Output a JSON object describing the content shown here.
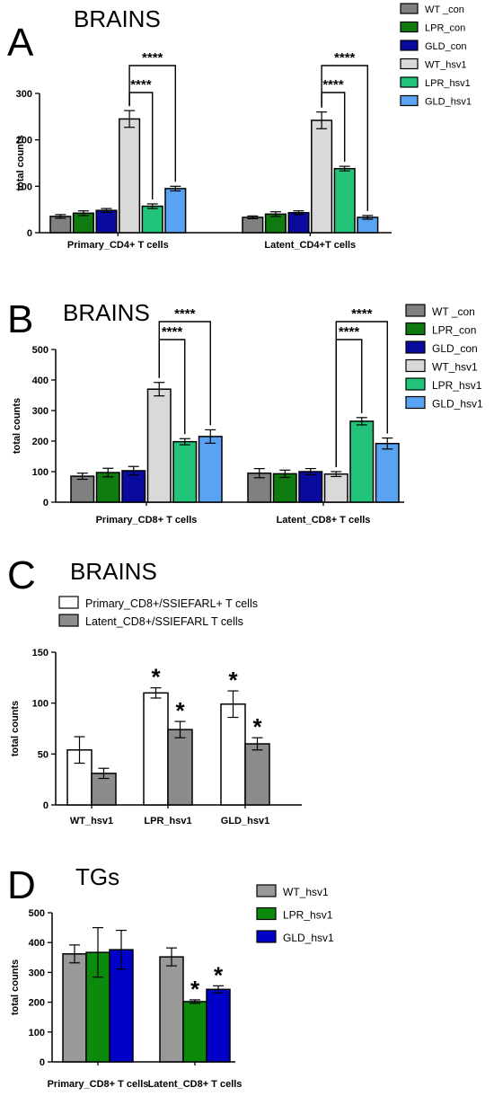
{
  "colors": {
    "WT_con": "#808080",
    "LPR_con": "#0f7a0f",
    "GLD_con": "#0a0a9e",
    "WT_hsv1": "#d9d9d9",
    "LPR_hsv1": "#22c47a",
    "GLD_hsv1": "#5aa2f2",
    "primary_white": "#ffffff",
    "latent_grey": "#8c8c8c",
    "tg_WT": "#999999",
    "tg_LPR": "#0c8a0c",
    "tg_GLD": "#0000c8"
  },
  "chart_data": [
    {
      "panel": "A",
      "title": "BRAINS",
      "type": "bar",
      "ylabel": "total counts",
      "ylim": [
        0,
        300
      ],
      "yticks": [
        0,
        100,
        200,
        300
      ],
      "categories": [
        "Primary_CD4+ T cells",
        "Latent_CD4+T cells"
      ],
      "legend_position": "top-right",
      "series": [
        {
          "name": "WT _con",
          "color_key": "WT_con",
          "values": [
            35,
            33
          ],
          "errors": [
            4,
            3
          ]
        },
        {
          "name": "LPR_con",
          "color_key": "LPR_con",
          "values": [
            42,
            40
          ],
          "errors": [
            5,
            5
          ]
        },
        {
          "name": "GLD_con",
          "color_key": "GLD_con",
          "values": [
            48,
            43
          ],
          "errors": [
            4,
            4
          ]
        },
        {
          "name": "WT_hsv1",
          "color_key": "WT_hsv1",
          "values": [
            245,
            242
          ],
          "errors": [
            18,
            18
          ]
        },
        {
          "name": "LPR_hsv1",
          "color_key": "LPR_hsv1",
          "values": [
            57,
            138
          ],
          "errors": [
            5,
            5
          ]
        },
        {
          "name": "GLD_hsv1",
          "color_key": "GLD_hsv1",
          "values": [
            95,
            33
          ],
          "errors": [
            5,
            4
          ]
        }
      ],
      "significance": [
        {
          "group": 0,
          "from": 3,
          "to": 4,
          "label": "****",
          "level": 1
        },
        {
          "group": 0,
          "from": 3,
          "to": 5,
          "label": "****",
          "level": 2
        },
        {
          "group": 1,
          "from": 3,
          "to": 4,
          "label": "****",
          "level": 1
        },
        {
          "group": 1,
          "from": 3,
          "to": 5,
          "label": "****",
          "level": 2
        }
      ]
    },
    {
      "panel": "B",
      "title": "BRAINS",
      "type": "bar",
      "ylabel": "total counts",
      "ylim": [
        0,
        500
      ],
      "yticks": [
        0,
        100,
        200,
        300,
        400,
        500
      ],
      "categories": [
        "Primary_CD8+ T cells",
        "Latent_CD8+ T cells"
      ],
      "legend_position": "right",
      "series": [
        {
          "name": "WT _con",
          "color_key": "WT_con",
          "values": [
            85,
            95
          ],
          "errors": [
            10,
            15
          ]
        },
        {
          "name": "LPR_con",
          "color_key": "LPR_con",
          "values": [
            97,
            93
          ],
          "errors": [
            14,
            12
          ]
        },
        {
          "name": "GLD_con",
          "color_key": "GLD_con",
          "values": [
            103,
            100
          ],
          "errors": [
            14,
            10
          ]
        },
        {
          "name": "WT_hsv1",
          "color_key": "WT_hsv1",
          "values": [
            370,
            92
          ],
          "errors": [
            22,
            8
          ]
        },
        {
          "name": "LPR_hsv1",
          "color_key": "LPR_hsv1",
          "values": [
            198,
            265
          ],
          "errors": [
            10,
            12
          ]
        },
        {
          "name": "GLD_hsv1",
          "color_key": "GLD_hsv1",
          "values": [
            215,
            192
          ],
          "errors": [
            22,
            18
          ]
        }
      ],
      "significance": [
        {
          "group": 0,
          "from": 3,
          "to": 4,
          "label": "****",
          "level": 1
        },
        {
          "group": 0,
          "from": 3,
          "to": 5,
          "label": "****",
          "level": 2
        },
        {
          "group": 1,
          "from": 3,
          "to": 4,
          "label": "****",
          "level": 1
        },
        {
          "group": 1,
          "from": 3,
          "to": 5,
          "label": "****",
          "level": 2
        }
      ]
    },
    {
      "panel": "C",
      "title": "BRAINS",
      "type": "bar",
      "ylabel": "total counts",
      "ylim": [
        0,
        150
      ],
      "yticks": [
        0,
        50,
        100,
        150
      ],
      "categories": [
        "WT_hsv1",
        "LPR_hsv1",
        "GLD_hsv1"
      ],
      "legend_position": "top",
      "series": [
        {
          "name": "Primary_CD8+/SSIEFARL+ T cells",
          "color_key": "primary_white",
          "values": [
            54,
            110,
            99
          ],
          "errors": [
            13,
            5,
            13
          ],
          "stars": [
            false,
            true,
            true
          ]
        },
        {
          "name": "Latent_CD8+/SSIEFARL T cells",
          "color_key": "latent_grey",
          "values": [
            31,
            74,
            60
          ],
          "errors": [
            5,
            8,
            6
          ],
          "stars": [
            false,
            true,
            true
          ]
        }
      ]
    },
    {
      "panel": "D",
      "title": "TGs",
      "type": "bar",
      "ylabel": "total counts",
      "ylim": [
        0,
        500
      ],
      "yticks": [
        0,
        100,
        200,
        300,
        400,
        500
      ],
      "categories": [
        "Primary_CD8+ T cells",
        "Latent_CD8+ T cells"
      ],
      "legend_position": "top-right",
      "series": [
        {
          "name": "WT_hsv1",
          "color_key": "tg_WT",
          "values": [
            362,
            352
          ],
          "errors": [
            30,
            30
          ],
          "stars": [
            false,
            false
          ]
        },
        {
          "name": "LPR_hsv1",
          "color_key": "tg_LPR",
          "values": [
            367,
            202
          ],
          "errors": [
            83,
            6
          ],
          "stars": [
            false,
            true
          ]
        },
        {
          "name": "GLD_hsv1",
          "color_key": "tg_GLD",
          "values": [
            376,
            243
          ],
          "errors": [
            65,
            12
          ],
          "stars": [
            false,
            true
          ]
        }
      ]
    }
  ],
  "star_symbol": "*"
}
